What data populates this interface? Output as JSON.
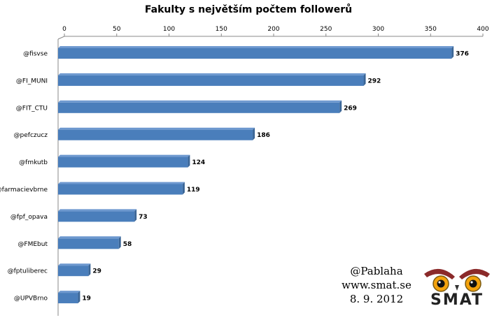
{
  "chart_data": {
    "type": "bar",
    "orientation": "horizontal",
    "title": "Fakulty s největším počtem followerů",
    "categories": [
      "@fisvse",
      "@FI_MUNI",
      "@FIT_CTU",
      "@pefczucz",
      "@fmkutb",
      "@farmacievbrne",
      "@fpf_opava",
      "@FMEbut",
      "@fptuliberec",
      "@UPVBrno"
    ],
    "values": [
      376,
      292,
      269,
      186,
      124,
      119,
      73,
      58,
      29,
      19
    ],
    "xlim": [
      0,
      400
    ],
    "ticks": [
      "0",
      "50",
      "100",
      "150",
      "200",
      "250",
      "300",
      "350",
      "400"
    ],
    "x_axis_position": "top",
    "grid": false,
    "bar_color": "#4a7ebb",
    "bar_edge_color": "#3a6596"
  },
  "credit": {
    "author": "@Pablaha",
    "website": "www.smat.se",
    "date": "8. 9. 2012"
  },
  "logo": {
    "text": "SMAT",
    "description_icon": "owl-eyes-logo"
  }
}
